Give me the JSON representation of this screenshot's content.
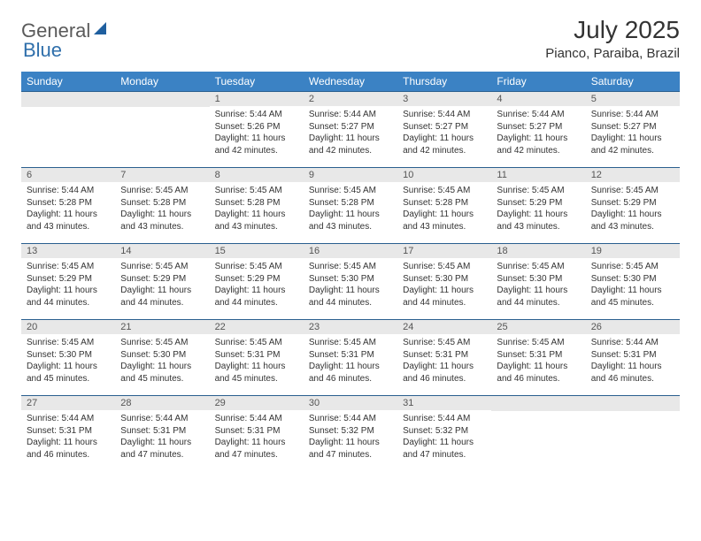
{
  "logo": {
    "general": "General",
    "blue": "Blue"
  },
  "title": "July 2025",
  "location": "Pianco, Paraiba, Brazil",
  "colors": {
    "header_bg": "#3b82c4",
    "header_text": "#ffffff",
    "row_divider": "#2a5f8f",
    "daynum_bg": "#e8e8e8",
    "daynum_text": "#555555",
    "body_text": "#333333",
    "logo_gray": "#5a5a5a",
    "logo_blue": "#2f6fab",
    "logo_shape": "#1f5f9f"
  },
  "day_headers": [
    "Sunday",
    "Monday",
    "Tuesday",
    "Wednesday",
    "Thursday",
    "Friday",
    "Saturday"
  ],
  "weeks": [
    [
      null,
      null,
      {
        "n": "1",
        "sr": "Sunrise: 5:44 AM",
        "ss": "Sunset: 5:26 PM",
        "dl": "Daylight: 11 hours and 42 minutes."
      },
      {
        "n": "2",
        "sr": "Sunrise: 5:44 AM",
        "ss": "Sunset: 5:27 PM",
        "dl": "Daylight: 11 hours and 42 minutes."
      },
      {
        "n": "3",
        "sr": "Sunrise: 5:44 AM",
        "ss": "Sunset: 5:27 PM",
        "dl": "Daylight: 11 hours and 42 minutes."
      },
      {
        "n": "4",
        "sr": "Sunrise: 5:44 AM",
        "ss": "Sunset: 5:27 PM",
        "dl": "Daylight: 11 hours and 42 minutes."
      },
      {
        "n": "5",
        "sr": "Sunrise: 5:44 AM",
        "ss": "Sunset: 5:27 PM",
        "dl": "Daylight: 11 hours and 42 minutes."
      }
    ],
    [
      {
        "n": "6",
        "sr": "Sunrise: 5:44 AM",
        "ss": "Sunset: 5:28 PM",
        "dl": "Daylight: 11 hours and 43 minutes."
      },
      {
        "n": "7",
        "sr": "Sunrise: 5:45 AM",
        "ss": "Sunset: 5:28 PM",
        "dl": "Daylight: 11 hours and 43 minutes."
      },
      {
        "n": "8",
        "sr": "Sunrise: 5:45 AM",
        "ss": "Sunset: 5:28 PM",
        "dl": "Daylight: 11 hours and 43 minutes."
      },
      {
        "n": "9",
        "sr": "Sunrise: 5:45 AM",
        "ss": "Sunset: 5:28 PM",
        "dl": "Daylight: 11 hours and 43 minutes."
      },
      {
        "n": "10",
        "sr": "Sunrise: 5:45 AM",
        "ss": "Sunset: 5:28 PM",
        "dl": "Daylight: 11 hours and 43 minutes."
      },
      {
        "n": "11",
        "sr": "Sunrise: 5:45 AM",
        "ss": "Sunset: 5:29 PM",
        "dl": "Daylight: 11 hours and 43 minutes."
      },
      {
        "n": "12",
        "sr": "Sunrise: 5:45 AM",
        "ss": "Sunset: 5:29 PM",
        "dl": "Daylight: 11 hours and 43 minutes."
      }
    ],
    [
      {
        "n": "13",
        "sr": "Sunrise: 5:45 AM",
        "ss": "Sunset: 5:29 PM",
        "dl": "Daylight: 11 hours and 44 minutes."
      },
      {
        "n": "14",
        "sr": "Sunrise: 5:45 AM",
        "ss": "Sunset: 5:29 PM",
        "dl": "Daylight: 11 hours and 44 minutes."
      },
      {
        "n": "15",
        "sr": "Sunrise: 5:45 AM",
        "ss": "Sunset: 5:29 PM",
        "dl": "Daylight: 11 hours and 44 minutes."
      },
      {
        "n": "16",
        "sr": "Sunrise: 5:45 AM",
        "ss": "Sunset: 5:30 PM",
        "dl": "Daylight: 11 hours and 44 minutes."
      },
      {
        "n": "17",
        "sr": "Sunrise: 5:45 AM",
        "ss": "Sunset: 5:30 PM",
        "dl": "Daylight: 11 hours and 44 minutes."
      },
      {
        "n": "18",
        "sr": "Sunrise: 5:45 AM",
        "ss": "Sunset: 5:30 PM",
        "dl": "Daylight: 11 hours and 44 minutes."
      },
      {
        "n": "19",
        "sr": "Sunrise: 5:45 AM",
        "ss": "Sunset: 5:30 PM",
        "dl": "Daylight: 11 hours and 45 minutes."
      }
    ],
    [
      {
        "n": "20",
        "sr": "Sunrise: 5:45 AM",
        "ss": "Sunset: 5:30 PM",
        "dl": "Daylight: 11 hours and 45 minutes."
      },
      {
        "n": "21",
        "sr": "Sunrise: 5:45 AM",
        "ss": "Sunset: 5:30 PM",
        "dl": "Daylight: 11 hours and 45 minutes."
      },
      {
        "n": "22",
        "sr": "Sunrise: 5:45 AM",
        "ss": "Sunset: 5:31 PM",
        "dl": "Daylight: 11 hours and 45 minutes."
      },
      {
        "n": "23",
        "sr": "Sunrise: 5:45 AM",
        "ss": "Sunset: 5:31 PM",
        "dl": "Daylight: 11 hours and 46 minutes."
      },
      {
        "n": "24",
        "sr": "Sunrise: 5:45 AM",
        "ss": "Sunset: 5:31 PM",
        "dl": "Daylight: 11 hours and 46 minutes."
      },
      {
        "n": "25",
        "sr": "Sunrise: 5:45 AM",
        "ss": "Sunset: 5:31 PM",
        "dl": "Daylight: 11 hours and 46 minutes."
      },
      {
        "n": "26",
        "sr": "Sunrise: 5:44 AM",
        "ss": "Sunset: 5:31 PM",
        "dl": "Daylight: 11 hours and 46 minutes."
      }
    ],
    [
      {
        "n": "27",
        "sr": "Sunrise: 5:44 AM",
        "ss": "Sunset: 5:31 PM",
        "dl": "Daylight: 11 hours and 46 minutes."
      },
      {
        "n": "28",
        "sr": "Sunrise: 5:44 AM",
        "ss": "Sunset: 5:31 PM",
        "dl": "Daylight: 11 hours and 47 minutes."
      },
      {
        "n": "29",
        "sr": "Sunrise: 5:44 AM",
        "ss": "Sunset: 5:31 PM",
        "dl": "Daylight: 11 hours and 47 minutes."
      },
      {
        "n": "30",
        "sr": "Sunrise: 5:44 AM",
        "ss": "Sunset: 5:32 PM",
        "dl": "Daylight: 11 hours and 47 minutes."
      },
      {
        "n": "31",
        "sr": "Sunrise: 5:44 AM",
        "ss": "Sunset: 5:32 PM",
        "dl": "Daylight: 11 hours and 47 minutes."
      },
      null,
      null
    ]
  ]
}
